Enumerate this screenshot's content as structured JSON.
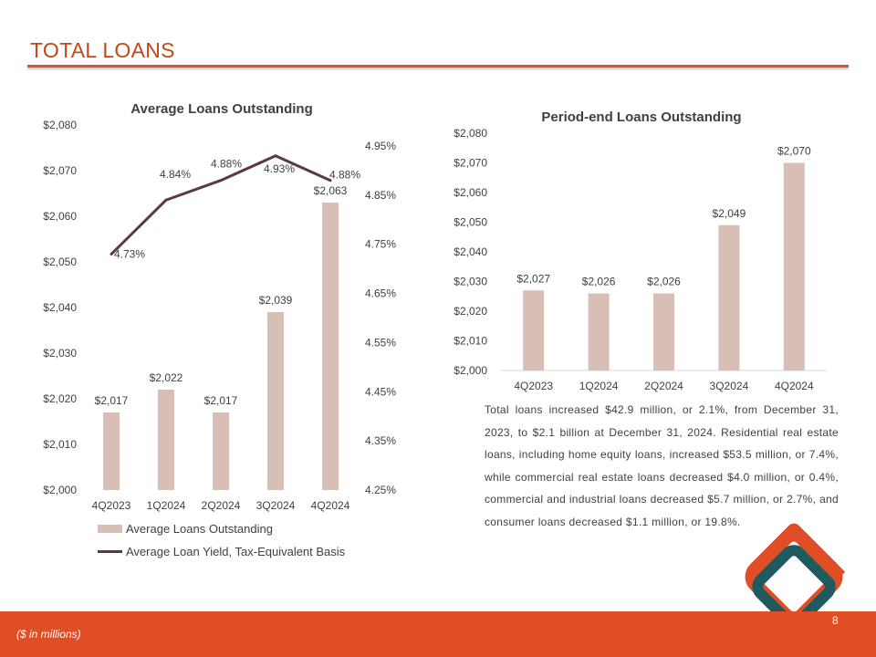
{
  "slide": {
    "title": "TOTAL LOANS",
    "page_number": "8",
    "footnote": "($ in millions)",
    "summary": "Total loans increased $42.9 million, or 2.1%, from December 31, 2023, to $2.1 billion at December 31, 2024. Residential real estate loans, including home equity loans, increased $53.5 million, or 7.4%, while commercial real estate loans decreased $4.0 million, or 0.4%, commercial and industrial loans decreased $5.7 million, or 2.7%, and consumer loans decreased $1.1 million, or 19.8%."
  },
  "colors": {
    "accent": "#e04e26",
    "title": "#c4471a",
    "bar": "#d7bfb6",
    "line": "#5a3a3a",
    "logo_orange": "#e04e26",
    "logo_teal": "#1e5a5e"
  },
  "chart_data": [
    {
      "type": "bar",
      "title": "Average Loans Outstanding",
      "categories": [
        "4Q2023",
        "1Q2024",
        "2Q2024",
        "3Q2024",
        "4Q2024"
      ],
      "series": [
        {
          "name": "Average Loans Outstanding",
          "type": "bar",
          "axis": "left",
          "values": [
            2017,
            2022,
            2017,
            2039,
            2063
          ],
          "labels": [
            "$2,017",
            "$2,022",
            "$2,017",
            "$2,039",
            "$2,063"
          ]
        },
        {
          "name": "Average Loan Yield, Tax-Equivalent Basis",
          "type": "line",
          "axis": "right",
          "values": [
            4.73,
            4.84,
            4.88,
            4.93,
            4.88
          ],
          "labels": [
            "4.73%",
            "4.84%",
            "4.88%",
            "4.93%",
            "4.88%"
          ]
        }
      ],
      "ylim": [
        2000,
        2080
      ],
      "yticks": [
        "$2,000",
        "$2,010",
        "$2,020",
        "$2,030",
        "$2,040",
        "$2,050",
        "$2,060",
        "$2,070",
        "$2,080"
      ],
      "y2lim": [
        4.25,
        4.95
      ],
      "y2ticks": [
        "4.25%",
        "4.35%",
        "4.45%",
        "4.55%",
        "4.65%",
        "4.75%",
        "4.85%",
        "4.95%"
      ],
      "legend_position": "bottom",
      "grid": false
    },
    {
      "type": "bar",
      "title": "Period-end Loans Outstanding",
      "categories": [
        "4Q2023",
        "1Q2024",
        "2Q2024",
        "3Q2024",
        "4Q2024"
      ],
      "values": [
        2027,
        2026,
        2026,
        2049,
        2070
      ],
      "labels": [
        "$2,027",
        "$2,026",
        "$2,026",
        "$2,049",
        "$2,070"
      ],
      "ylim": [
        2000,
        2080
      ],
      "yticks": [
        "$2,000",
        "$2,010",
        "$2,020",
        "$2,030",
        "$2,040",
        "$2,050",
        "$2,060",
        "$2,070",
        "$2,080"
      ],
      "grid": false
    }
  ]
}
